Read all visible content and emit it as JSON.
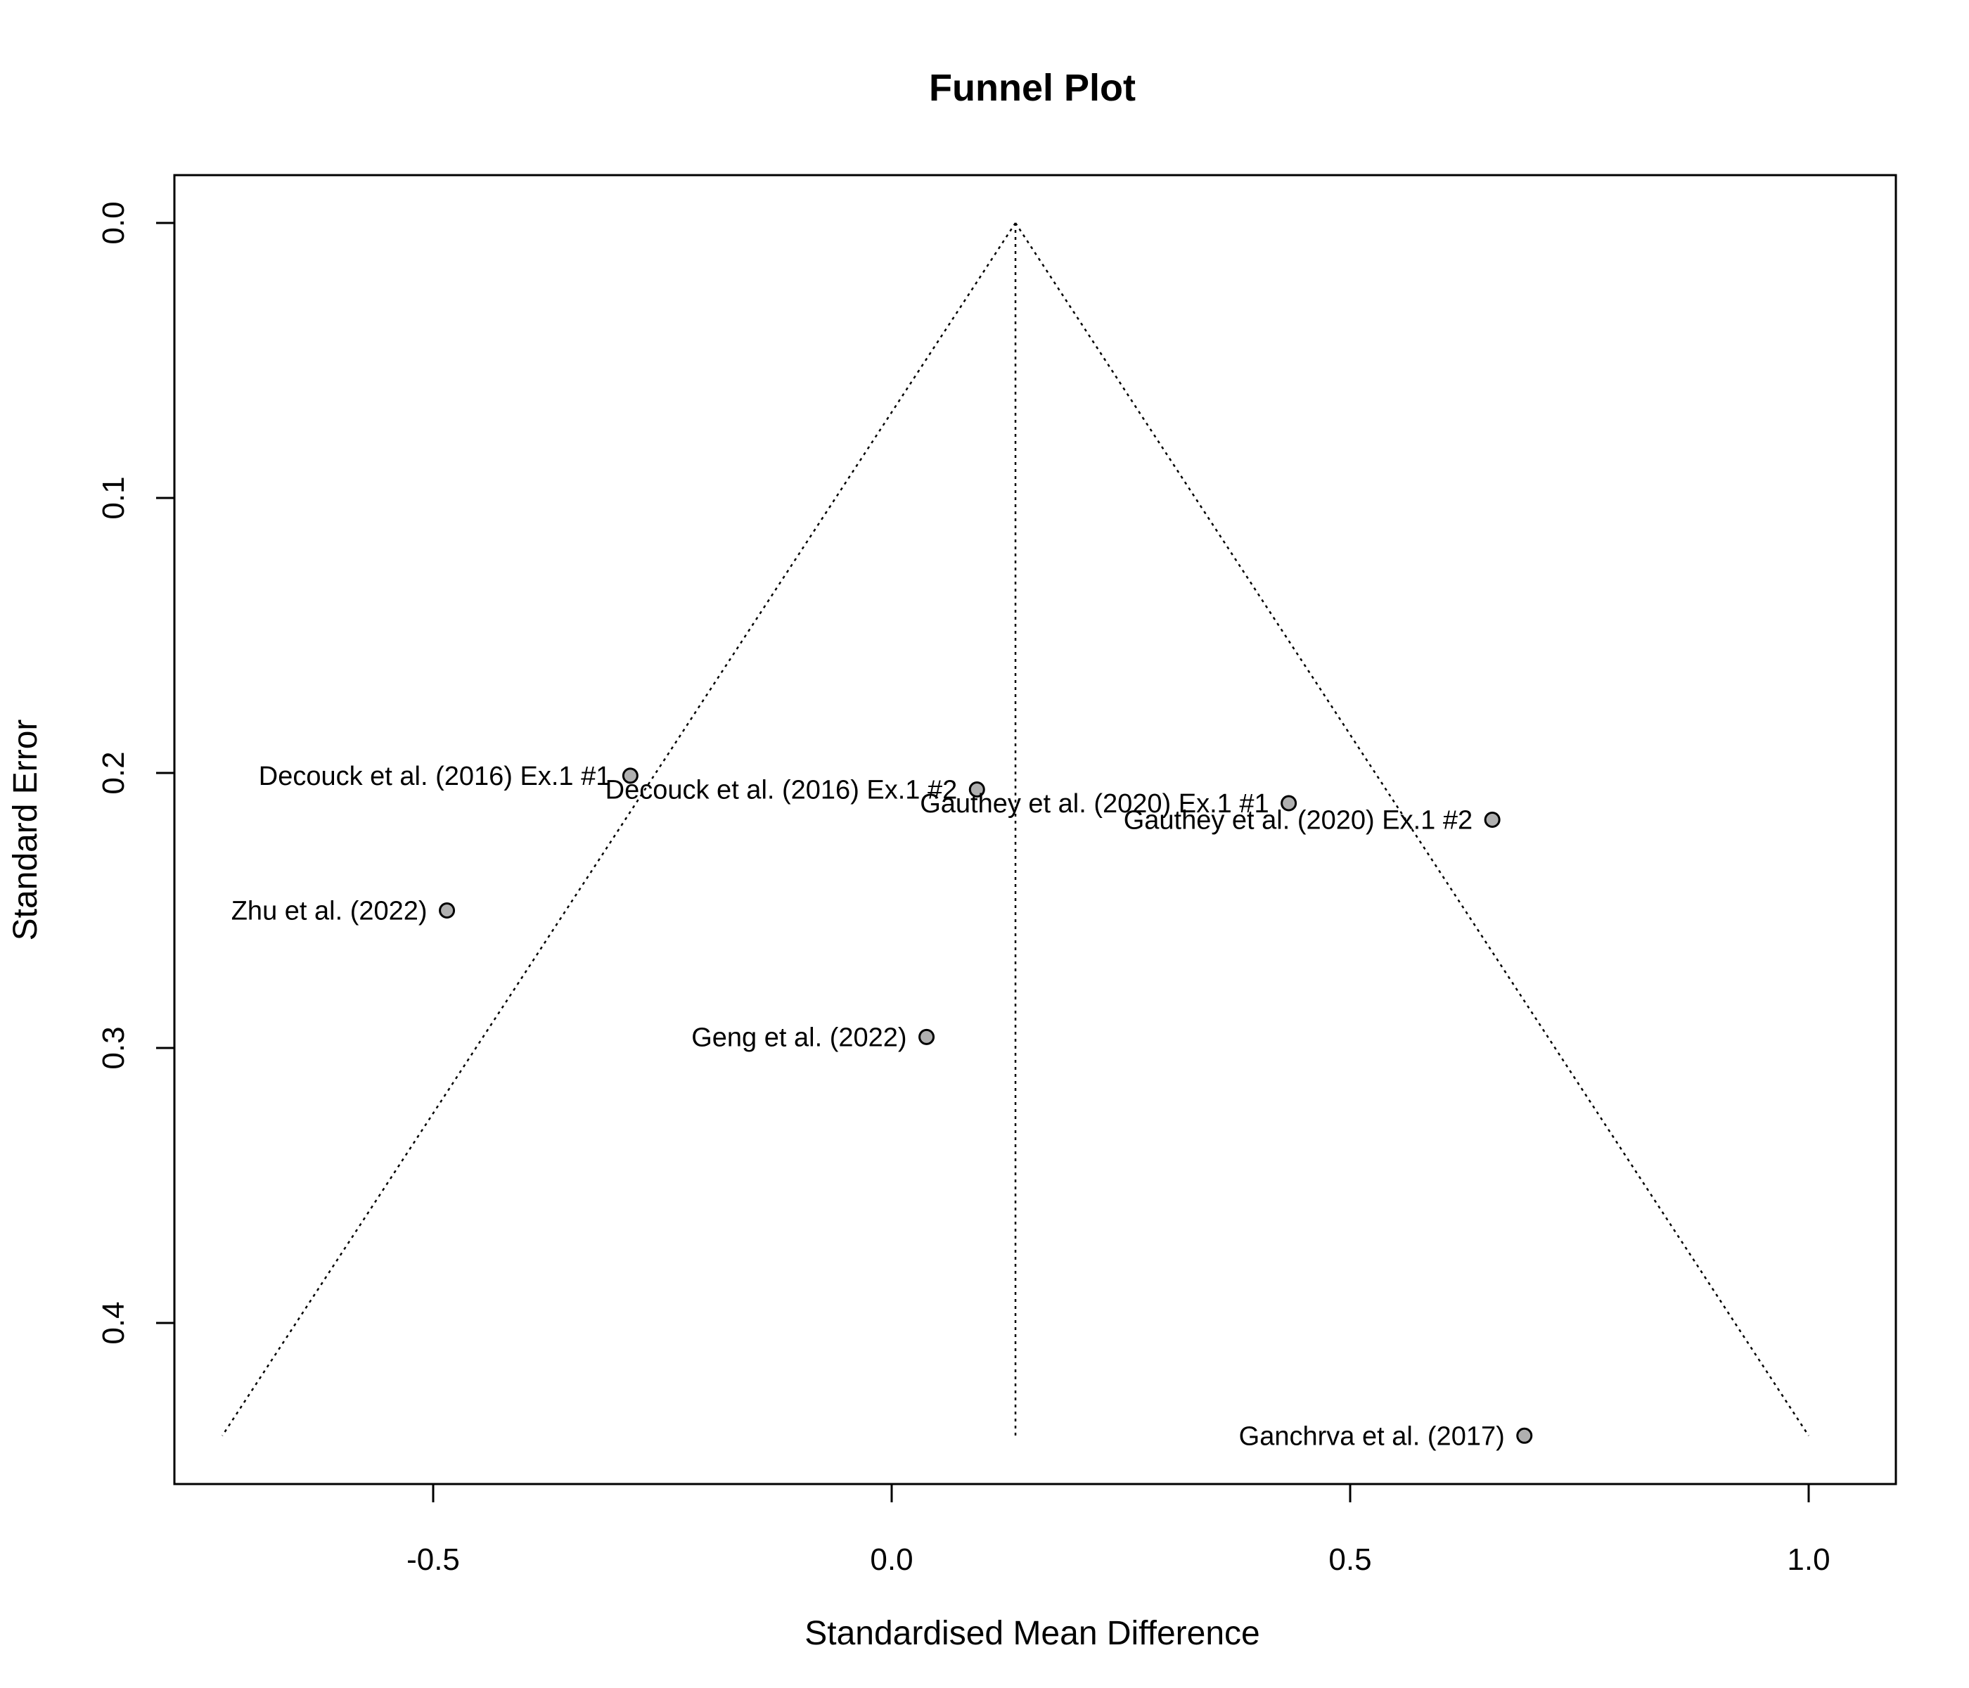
{
  "chart_data": {
    "type": "scatter",
    "title": "Funnel Plot",
    "xlabel": "Standardised Mean Difference",
    "ylabel": "Standard Error",
    "xlim": [
      -0.785,
      1.095
    ],
    "ylim": [
      0.0,
      0.46
    ],
    "y_reversed": true,
    "grid": false,
    "legend": "none",
    "x_ticks": [
      {
        "value": -0.5,
        "label": "-0.5"
      },
      {
        "value": 0.0,
        "label": "0.0"
      },
      {
        "value": 0.5,
        "label": "0.5"
      },
      {
        "value": 1.0,
        "label": "1.0"
      }
    ],
    "y_ticks": [
      {
        "value": 0.0,
        "label": "0.0"
      },
      {
        "value": 0.1,
        "label": "0.1"
      },
      {
        "value": 0.2,
        "label": "0.2"
      },
      {
        "value": 0.3,
        "label": "0.3"
      },
      {
        "value": 0.4,
        "label": "0.4"
      }
    ],
    "funnel": {
      "center": 0.135,
      "se_max": 0.441,
      "lower_at_max": -0.73,
      "upper_at_max": 1.0
    },
    "points": [
      {
        "label": "Decouck et al. (2016) Ex.1 #1",
        "x": -0.285,
        "y": 0.201
      },
      {
        "label": "Decouck et al. (2016) Ex.1 #2",
        "x": 0.093,
        "y": 0.206
      },
      {
        "label": "Gauthey et al. (2020) Ex.1 #1",
        "x": 0.433,
        "y": 0.211
      },
      {
        "label": "Gauthey et al. (2020) Ex.1 #2",
        "x": 0.655,
        "y": 0.217
      },
      {
        "label": "Zhu et al. (2022)",
        "x": -0.485,
        "y": 0.25
      },
      {
        "label": "Geng et al. (2022)",
        "x": 0.038,
        "y": 0.296
      },
      {
        "label": "Ganchrva et al. (2017)",
        "x": 0.69,
        "y": 0.441
      }
    ]
  }
}
